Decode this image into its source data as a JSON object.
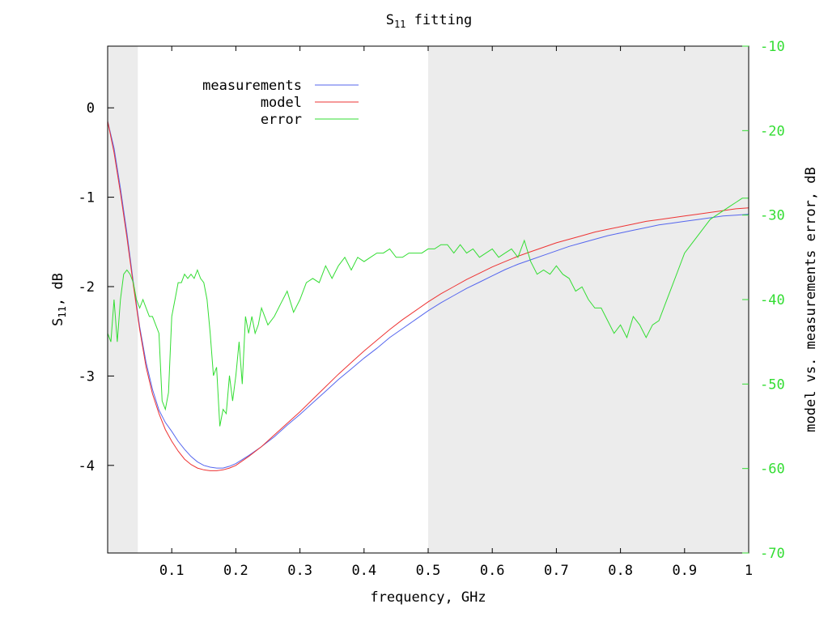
{
  "chart_data": {
    "type": "line",
    "title": {
      "main": "S",
      "sub": "11",
      "rest": " fitting"
    },
    "xlabel": "frequency, GHz",
    "ylabel": {
      "main": "S",
      "sub": "11",
      "rest": ", dB"
    },
    "y2label": "model vs. measurements error, dB",
    "xlim": [
      0.0,
      1.0
    ],
    "ylim": [
      -4.98,
      0.69
    ],
    "y2lim": [
      -70,
      -10
    ],
    "xticks": [
      "0.1",
      "0.2",
      "0.3",
      "0.4",
      "0.5",
      "0.6",
      "0.7",
      "0.8",
      "0.9",
      "1"
    ],
    "yticks": [
      "0",
      "-1",
      "-2",
      "-3",
      "-4"
    ],
    "y2ticks": [
      "-10",
      "-20",
      "-30",
      "-40",
      "-50",
      "-60",
      "-70"
    ],
    "shaded_ranges": [
      [
        0.0,
        0.047
      ],
      [
        0.5,
        1.0
      ]
    ],
    "legend_position": "top-left",
    "colors": {
      "shade": "#ececec",
      "right_axis": "#33dd33"
    },
    "series": [
      {
        "name": "measurements",
        "axis": "y1",
        "color": "#5566ee",
        "x": [
          0.0,
          0.01,
          0.02,
          0.03,
          0.04,
          0.05,
          0.06,
          0.07,
          0.08,
          0.09,
          0.1,
          0.11,
          0.12,
          0.13,
          0.14,
          0.15,
          0.16,
          0.17,
          0.18,
          0.19,
          0.2,
          0.22,
          0.24,
          0.26,
          0.28,
          0.3,
          0.32,
          0.34,
          0.36,
          0.38,
          0.4,
          0.42,
          0.44,
          0.46,
          0.48,
          0.5,
          0.52,
          0.54,
          0.56,
          0.58,
          0.6,
          0.62,
          0.64,
          0.66,
          0.68,
          0.7,
          0.72,
          0.74,
          0.76,
          0.78,
          0.8,
          0.82,
          0.84,
          0.86,
          0.88,
          0.9,
          0.92,
          0.94,
          0.96,
          0.98,
          1.0
        ],
        "values": [
          -0.15,
          -0.45,
          -0.9,
          -1.4,
          -1.95,
          -2.45,
          -2.85,
          -3.15,
          -3.38,
          -3.52,
          -3.62,
          -3.73,
          -3.82,
          -3.9,
          -3.96,
          -4.0,
          -4.02,
          -4.03,
          -4.03,
          -4.01,
          -3.98,
          -3.89,
          -3.79,
          -3.68,
          -3.55,
          -3.43,
          -3.3,
          -3.17,
          -3.04,
          -2.92,
          -2.8,
          -2.69,
          -2.57,
          -2.47,
          -2.37,
          -2.27,
          -2.18,
          -2.1,
          -2.02,
          -1.95,
          -1.88,
          -1.81,
          -1.75,
          -1.7,
          -1.65,
          -1.6,
          -1.55,
          -1.51,
          -1.47,
          -1.43,
          -1.4,
          -1.37,
          -1.34,
          -1.31,
          -1.29,
          -1.27,
          -1.25,
          -1.23,
          -1.21,
          -1.2,
          -1.19
        ]
      },
      {
        "name": "model",
        "axis": "y1",
        "color": "#ee3333",
        "x": [
          0.0,
          0.01,
          0.02,
          0.03,
          0.04,
          0.05,
          0.06,
          0.07,
          0.08,
          0.09,
          0.1,
          0.11,
          0.12,
          0.13,
          0.14,
          0.15,
          0.16,
          0.17,
          0.18,
          0.19,
          0.2,
          0.22,
          0.24,
          0.26,
          0.28,
          0.3,
          0.32,
          0.34,
          0.36,
          0.38,
          0.4,
          0.42,
          0.44,
          0.46,
          0.48,
          0.5,
          0.52,
          0.54,
          0.56,
          0.58,
          0.6,
          0.62,
          0.64,
          0.66,
          0.68,
          0.7,
          0.72,
          0.74,
          0.76,
          0.78,
          0.8,
          0.82,
          0.84,
          0.86,
          0.88,
          0.9,
          0.92,
          0.94,
          0.96,
          0.98,
          1.0
        ],
        "values": [
          -0.15,
          -0.5,
          -0.95,
          -1.45,
          -1.98,
          -2.48,
          -2.9,
          -3.2,
          -3.42,
          -3.6,
          -3.73,
          -3.84,
          -3.93,
          -3.99,
          -4.03,
          -4.05,
          -4.06,
          -4.06,
          -4.05,
          -4.03,
          -4.0,
          -3.9,
          -3.79,
          -3.66,
          -3.53,
          -3.4,
          -3.26,
          -3.12,
          -2.98,
          -2.85,
          -2.72,
          -2.6,
          -2.48,
          -2.37,
          -2.27,
          -2.17,
          -2.08,
          -2.0,
          -1.92,
          -1.85,
          -1.78,
          -1.72,
          -1.66,
          -1.61,
          -1.56,
          -1.51,
          -1.47,
          -1.43,
          -1.39,
          -1.36,
          -1.33,
          -1.3,
          -1.27,
          -1.25,
          -1.23,
          -1.21,
          -1.19,
          -1.17,
          -1.15,
          -1.13,
          -1.12
        ]
      },
      {
        "name": "error",
        "axis": "y2",
        "color": "#33dd33",
        "x": [
          0.0,
          0.005,
          0.01,
          0.015,
          0.02,
          0.025,
          0.03,
          0.035,
          0.04,
          0.045,
          0.05,
          0.055,
          0.06,
          0.065,
          0.07,
          0.075,
          0.08,
          0.085,
          0.09,
          0.095,
          0.1,
          0.105,
          0.11,
          0.115,
          0.12,
          0.125,
          0.13,
          0.135,
          0.14,
          0.145,
          0.15,
          0.155,
          0.16,
          0.165,
          0.17,
          0.175,
          0.18,
          0.185,
          0.19,
          0.195,
          0.2,
          0.205,
          0.21,
          0.215,
          0.22,
          0.225,
          0.23,
          0.235,
          0.24,
          0.25,
          0.26,
          0.27,
          0.28,
          0.29,
          0.3,
          0.31,
          0.32,
          0.33,
          0.34,
          0.35,
          0.36,
          0.37,
          0.38,
          0.39,
          0.4,
          0.41,
          0.42,
          0.43,
          0.44,
          0.45,
          0.46,
          0.47,
          0.48,
          0.49,
          0.5,
          0.51,
          0.52,
          0.53,
          0.54,
          0.55,
          0.56,
          0.57,
          0.58,
          0.59,
          0.6,
          0.61,
          0.62,
          0.63,
          0.64,
          0.65,
          0.66,
          0.67,
          0.68,
          0.69,
          0.7,
          0.71,
          0.72,
          0.73,
          0.74,
          0.75,
          0.76,
          0.77,
          0.78,
          0.79,
          0.8,
          0.81,
          0.82,
          0.83,
          0.84,
          0.85,
          0.86,
          0.87,
          0.88,
          0.89,
          0.9,
          0.91,
          0.92,
          0.93,
          0.94,
          0.95,
          0.96,
          0.97,
          0.98,
          0.99,
          1.0
        ],
        "values": [
          -44,
          -45,
          -40,
          -45,
          -40,
          -37,
          -36.5,
          -37,
          -38,
          -40,
          -41,
          -40,
          -41,
          -42,
          -42,
          -43,
          -44,
          -52,
          -53,
          -51,
          -42,
          -40,
          -38,
          -38,
          -37,
          -37.5,
          -37,
          -37.5,
          -36.5,
          -37.5,
          -38,
          -40,
          -44,
          -49,
          -48,
          -55,
          -53,
          -53.5,
          -49,
          -52,
          -49,
          -45,
          -50,
          -42,
          -44,
          -42,
          -44,
          -43,
          -41,
          -43,
          -42,
          -40.5,
          -39,
          -41.5,
          -40,
          -38,
          -37.5,
          -38,
          -36,
          -37.5,
          -36,
          -35,
          -36.5,
          -35,
          -35.5,
          -35,
          -34.5,
          -34.5,
          -34,
          -35,
          -35,
          -34.5,
          -34.5,
          -34.5,
          -34,
          -34,
          -33.5,
          -33.5,
          -34.5,
          -33.5,
          -34.5,
          -34,
          -35,
          -34.5,
          -34,
          -35,
          -34.5,
          -34,
          -35,
          -33,
          -35.5,
          -37,
          -36.5,
          -37,
          -36,
          -37,
          -37.5,
          -39,
          -38.5,
          -40,
          -41,
          -41,
          -42.5,
          -44,
          -43,
          -44.5,
          -42,
          -43,
          -44.5,
          -43,
          -42.5,
          -40.5,
          -38.5,
          -36.5,
          -34.5,
          -33.5,
          -32.5,
          -31.5,
          -30.5,
          -30,
          -29.5,
          -29,
          -28.5,
          -28,
          -28
        ]
      }
    ]
  }
}
